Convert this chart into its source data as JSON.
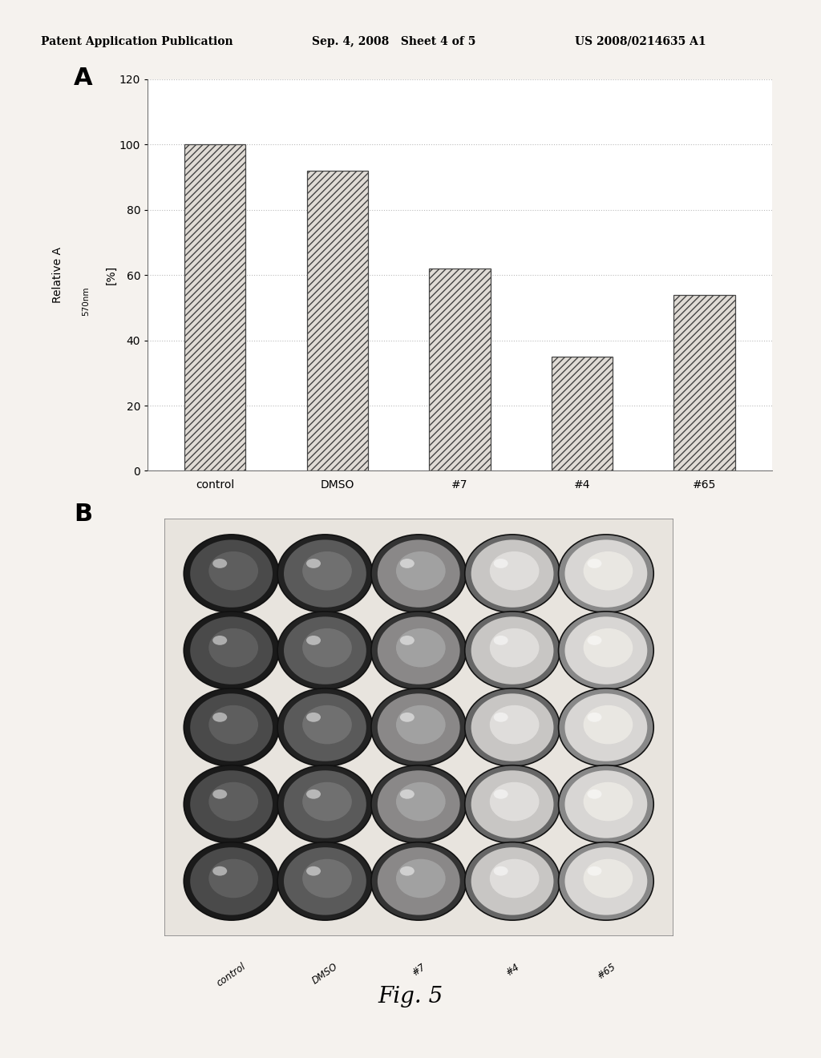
{
  "header_left": "Patent Application Publication",
  "header_center": "Sep. 4, 2008   Sheet 4 of 5",
  "header_right": "US 2008/0214635 A1",
  "panel_A_label": "A",
  "panel_B_label": "B",
  "categories": [
    "control",
    "DMSO",
    "#7",
    "#4",
    "#65"
  ],
  "values": [
    100,
    92,
    62,
    35,
    54
  ],
  "ylabel_main": "Relative A",
  "ylabel_sub": "570nm",
  "ylabel_units": "[%]",
  "ylim": [
    0,
    120
  ],
  "yticks": [
    0,
    20,
    40,
    60,
    80,
    100,
    120
  ],
  "fig_caption": "Fig. 5",
  "background_color": "#f5f2ee",
  "chart_bg": "#ffffff",
  "bar_hatch": "////",
  "bar_facecolor": "#e0dbd5",
  "bar_edgecolor": "#444444",
  "grid_color": "#bbbbbb",
  "header_fontsize": 10,
  "tick_fontsize": 10,
  "plate_rows": 5,
  "plate_cols": 5,
  "plate_labels": [
    "control",
    "DMSO",
    "#7",
    "#4",
    "#65"
  ],
  "well_fill_colors": [
    "#4a4a4a",
    "#5a5a5a",
    "#8a8888",
    "#c8c6c4",
    "#d8d6d4"
  ],
  "well_ring_colors": [
    "#1a1a1a",
    "#222222",
    "#333333",
    "#666666",
    "#888888"
  ],
  "well_inner_light": [
    "#666666",
    "#787878",
    "#aaaaaa",
    "#e8e6e4",
    "#f0eee8"
  ]
}
